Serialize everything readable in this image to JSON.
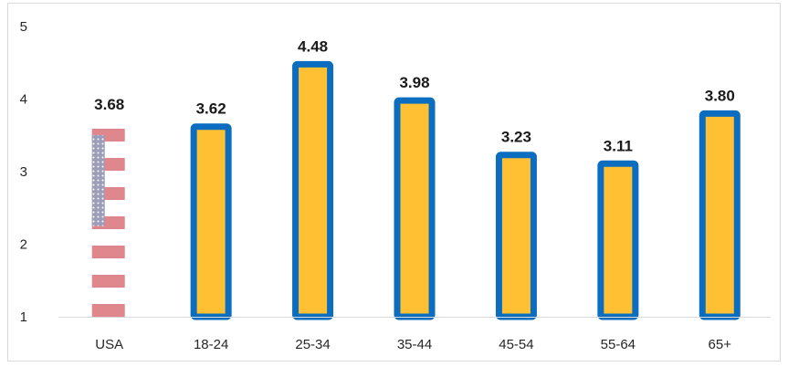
{
  "chart_data": {
    "type": "bar",
    "categories": [
      "USA",
      "18-24",
      "25-34",
      "35-44",
      "45-54",
      "55-64",
      "65+"
    ],
    "values": [
      3.68,
      3.62,
      4.48,
      3.98,
      3.23,
      3.11,
      3.8
    ],
    "value_labels": [
      "3.68",
      "3.62",
      "4.48",
      "3.98",
      "3.23",
      "3.11",
      "3.80"
    ],
    "title": "",
    "xlabel": "",
    "ylabel": "",
    "ylim": [
      1,
      5
    ],
    "yticks": [
      "1",
      "2",
      "3",
      "4",
      "5"
    ],
    "grid": false,
    "legend": "none",
    "first_bar_style": "us-flag",
    "colors": {
      "bar_fill": "#FFC133",
      "bar_border": "#0A6DC0",
      "flag_stripe": "#E0878E",
      "flag_canton": "#9C9DB8",
      "axis": "#d9d9d9"
    }
  }
}
